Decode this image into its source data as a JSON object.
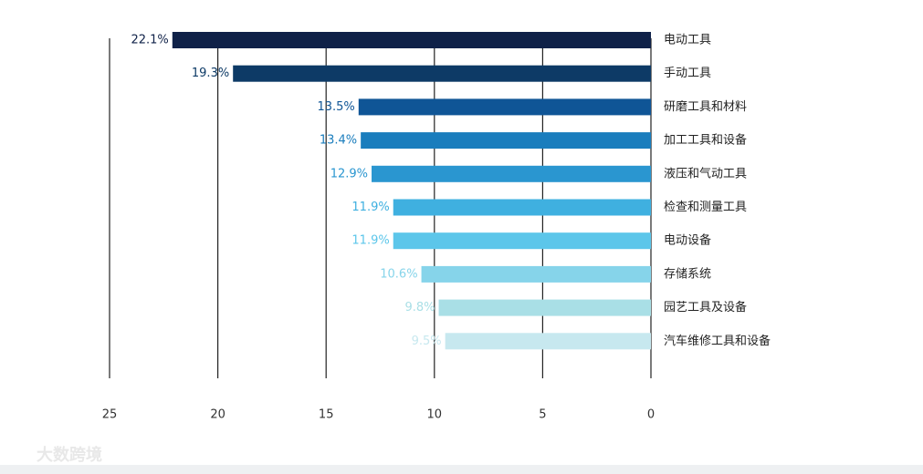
{
  "chart_data": {
    "type": "hbar",
    "categories": [
      "电动工具",
      "手动工具",
      "研磨工具和材料",
      "加工工具和设备",
      "液压和气动工具",
      "检查和测量工具",
      "电动设备",
      "存储系统",
      "园艺工具及设备",
      "汽车维修工具和设备"
    ],
    "values": [
      22.1,
      19.3,
      13.5,
      13.4,
      12.9,
      11.9,
      11.9,
      10.6,
      9.8,
      9.5
    ],
    "value_labels": [
      "22.1%",
      "19.3%",
      "13.5%",
      "13.4%",
      "12.9%",
      "11.9%",
      "11.9%",
      "10.6%",
      "9.8%",
      "9.5%"
    ],
    "colors": [
      "#0f2148",
      "#0d3a66",
      "#0f5596",
      "#1a7dbd",
      "#2a96d0",
      "#3fb0e0",
      "#5cc6ea",
      "#86d4ea",
      "#a9dfe6",
      "#c7e8ef"
    ],
    "xlim": [
      25,
      0
    ],
    "xticks": [
      25,
      20,
      15,
      10,
      5,
      0
    ],
    "grid": true,
    "watermark": "大数跨境"
  }
}
